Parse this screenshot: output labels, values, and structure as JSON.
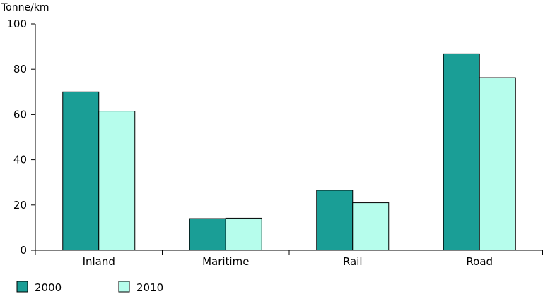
{
  "chart_data": {
    "type": "bar",
    "title": "",
    "xlabel": "",
    "ylabel": "Tonne/km",
    "ylim": [
      0,
      100
    ],
    "yticks": [
      0,
      20,
      40,
      60,
      80,
      100
    ],
    "grid": false,
    "legend_position": "bottom-left",
    "categories": [
      "Inland",
      "Maritime",
      "Rail",
      "Road"
    ],
    "series": [
      {
        "name": "2000",
        "values": [
          70,
          14,
          26.5,
          86.8
        ],
        "color": "#1a9e96"
      },
      {
        "name": "2010",
        "values": [
          61.5,
          14.2,
          21,
          76.3
        ],
        "color": "#b6fdec"
      }
    ]
  }
}
